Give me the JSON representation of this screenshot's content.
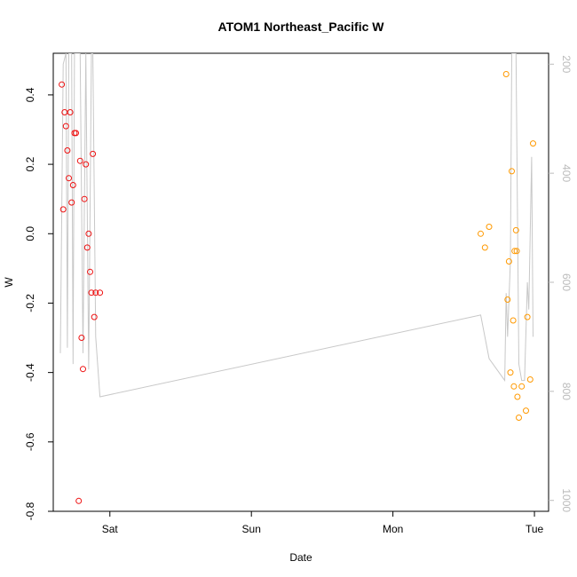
{
  "chart_data": {
    "type": "scatter",
    "title": "ATOM1 Northeast_Pacific W",
    "xlabel": "Date",
    "ylabel": "W",
    "x_ticks": [
      "Sat",
      "Sun",
      "Mon",
      "Tue"
    ],
    "y_ticks": [
      "-0.8",
      "-0.6",
      "-0.4",
      "-0.2",
      "0.0",
      "0.2",
      "0.4"
    ],
    "y2_ticks": [
      "200",
      "400",
      "600",
      "800",
      "1000"
    ],
    "ylim": [
      -0.8,
      0.52
    ],
    "y2lim": [
      1020,
      180
    ],
    "grid": false,
    "colors": {
      "series_a": "#ee1111",
      "series_b": "#ff9900",
      "line": "#c8c8c8",
      "right_axis": "#bbbbbb"
    },
    "x_unit": "days",
    "xlim": [
      -0.4,
      3.1
    ],
    "series": [
      {
        "color": "#ee1111",
        "x": [
          -0.34,
          -0.33,
          -0.32,
          -0.31,
          -0.3,
          -0.29,
          -0.28,
          -0.27,
          -0.26,
          -0.25,
          -0.24,
          -0.22,
          -0.21,
          -0.2,
          -0.19,
          -0.18,
          -0.17,
          -0.16,
          -0.15,
          -0.14,
          -0.13,
          -0.12,
          -0.11,
          -0.1,
          -0.07
        ],
        "y": [
          0.43,
          0.07,
          0.35,
          0.31,
          0.24,
          0.16,
          0.35,
          0.09,
          0.14,
          0.29,
          0.29,
          -0.77,
          0.21,
          -0.3,
          -0.39,
          0.1,
          0.2,
          -0.04,
          0.0,
          -0.11,
          -0.17,
          0.23,
          -0.24,
          -0.17,
          -0.17
        ]
      },
      {
        "color": "#ff9900",
        "x": [
          2.62,
          2.65,
          2.68,
          2.8,
          2.81,
          2.82,
          2.83,
          2.84,
          2.85,
          2.855,
          2.86,
          2.87,
          2.875,
          2.88,
          2.89,
          2.91,
          2.94,
          2.95,
          2.97,
          2.99
        ],
        "y": [
          0.0,
          -0.04,
          0.02,
          0.46,
          -0.19,
          -0.08,
          -0.4,
          0.18,
          -0.25,
          -0.44,
          -0.05,
          0.01,
          -0.05,
          -0.47,
          -0.53,
          -0.44,
          -0.51,
          -0.24,
          -0.42,
          0.26
        ]
      }
    ],
    "depth_line": {
      "x": [
        -0.35,
        -0.33,
        -0.31,
        -0.3,
        -0.29,
        -0.27,
        -0.26,
        -0.25,
        -0.23,
        -0.21,
        -0.19,
        -0.17,
        -0.15,
        -0.13,
        -0.12,
        -0.1,
        -0.07,
        2.62,
        2.68,
        2.79,
        2.8,
        2.81,
        2.83,
        2.84,
        2.85,
        2.86,
        2.87,
        2.89,
        2.91,
        2.93,
        2.95,
        2.96,
        2.98,
        2.99
      ],
      "y": [
        730,
        200,
        150,
        720,
        150,
        150,
        750,
        150,
        150,
        150,
        730,
        150,
        760,
        150,
        150,
        700,
        810,
        660,
        740,
        780,
        620,
        700,
        560,
        150,
        180,
        150,
        150,
        750,
        780,
        780,
        600,
        650,
        370,
        700
      ]
    }
  }
}
